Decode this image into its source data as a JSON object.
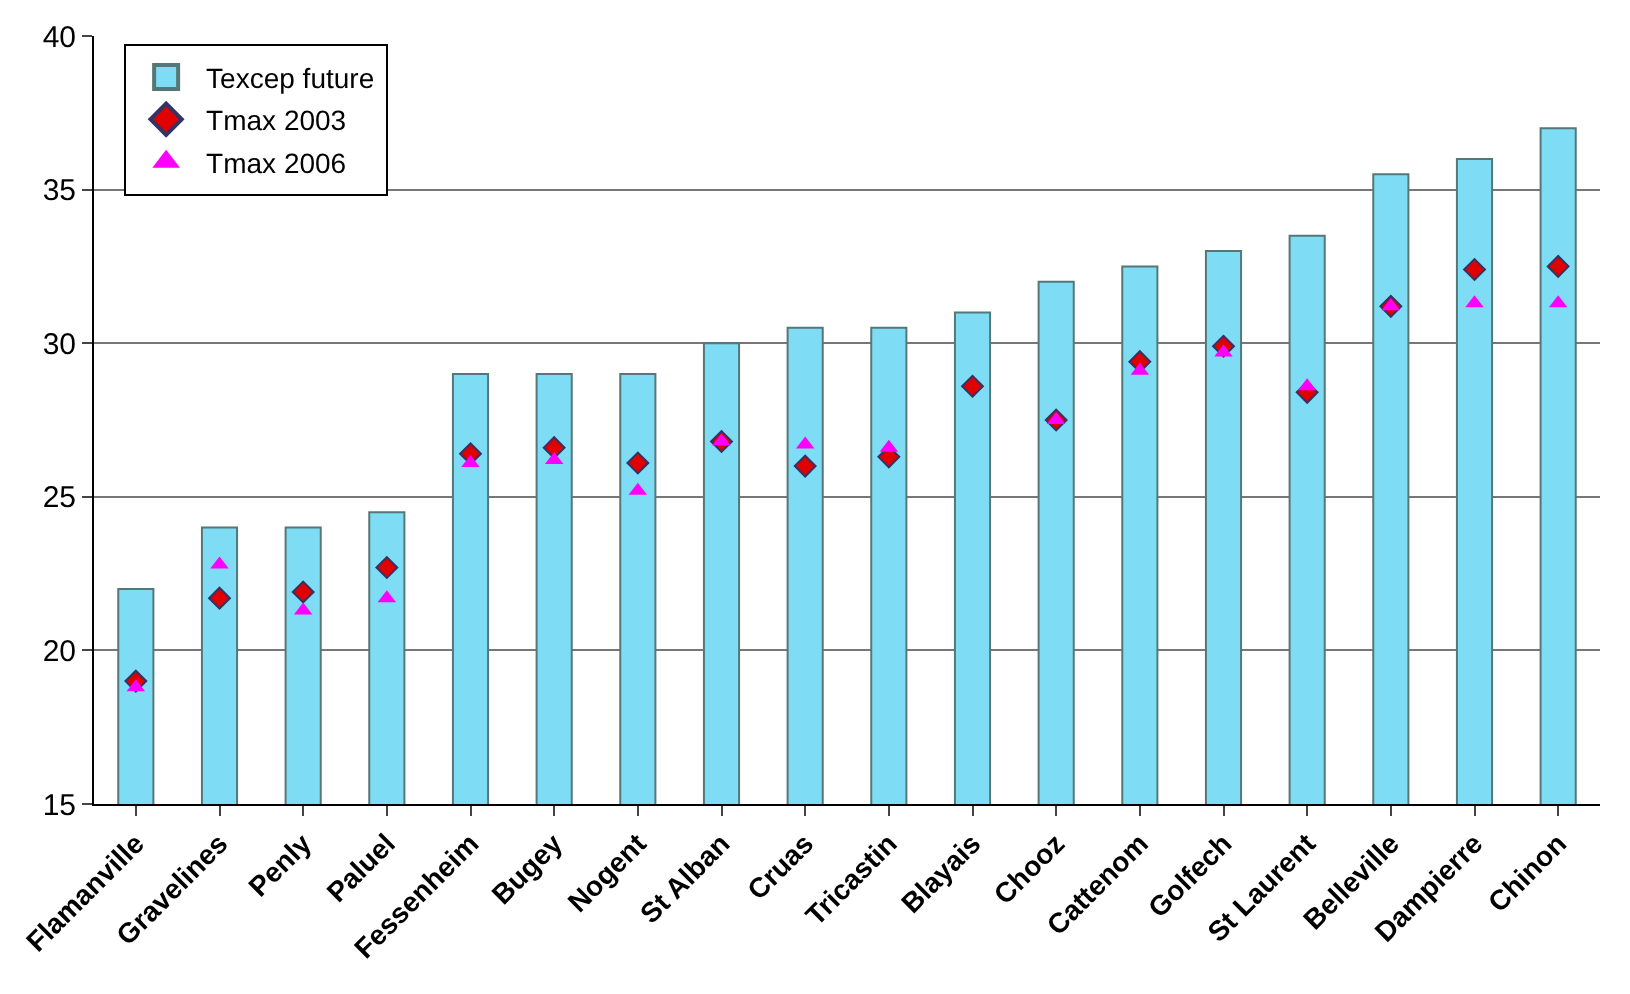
{
  "chart_data": {
    "type": "bar",
    "categories": [
      "Flamanville",
      "Gravelines",
      "Penly",
      "Paluel",
      "Fessenheim",
      "Bugey",
      "Nogent",
      "St Alban",
      "Cruas",
      "Tricastin",
      "Blayais",
      "Chooz",
      "Cattenom",
      "Golfech",
      "St Laurent",
      "Belleville",
      "Dampierre",
      "Chinon"
    ],
    "series": [
      {
        "name": "Texcep future",
        "color": "#7fdcf5",
        "values": [
          22,
          24,
          24,
          24.5,
          29,
          29,
          29,
          30,
          30.5,
          30.5,
          31,
          32,
          32.5,
          33,
          33.5,
          35.5,
          36,
          37
        ]
      },
      {
        "name": "Tmax 2003",
        "type": "scatter",
        "marker": "diamond",
        "color": "#e00000",
        "values": [
          19.0,
          21.7,
          21.9,
          22.7,
          26.4,
          26.6,
          26.1,
          26.8,
          26.0,
          26.3,
          28.6,
          27.5,
          29.4,
          29.9,
          28.4,
          31.2,
          32.4,
          32.5
        ]
      },
      {
        "name": "Tmax 2006",
        "type": "scatter",
        "marker": "triangle",
        "color": "#ff00ff",
        "values": [
          18.8,
          22.8,
          21.3,
          21.7,
          26.1,
          26.2,
          25.2,
          26.8,
          26.7,
          26.6,
          null,
          27.5,
          29.1,
          29.7,
          28.6,
          31.2,
          31.3,
          31.3
        ]
      }
    ],
    "ylim": [
      15,
      40
    ],
    "yticks": [
      15,
      20,
      25,
      30,
      35,
      40
    ],
    "grid": "y",
    "legend": "top left"
  }
}
